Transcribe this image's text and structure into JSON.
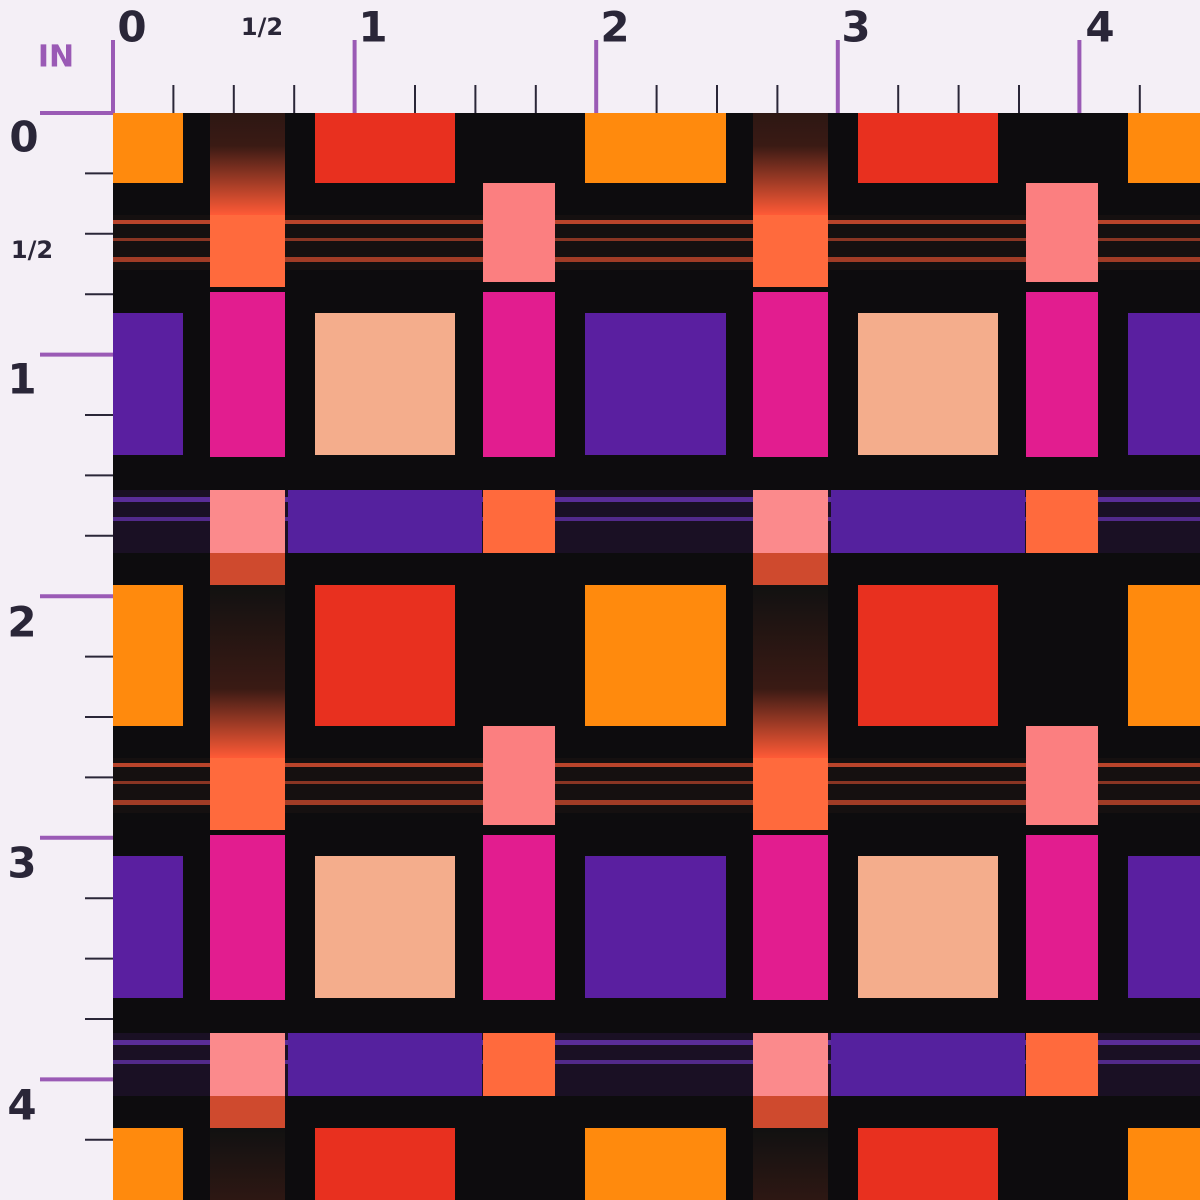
{
  "ruler": {
    "unit": "IN",
    "top_labels": [
      "0",
      "1/2",
      "1",
      "2",
      "3",
      "4"
    ],
    "left_labels": [
      "0",
      "1/2",
      "1",
      "2",
      "3",
      "4"
    ]
  }
}
